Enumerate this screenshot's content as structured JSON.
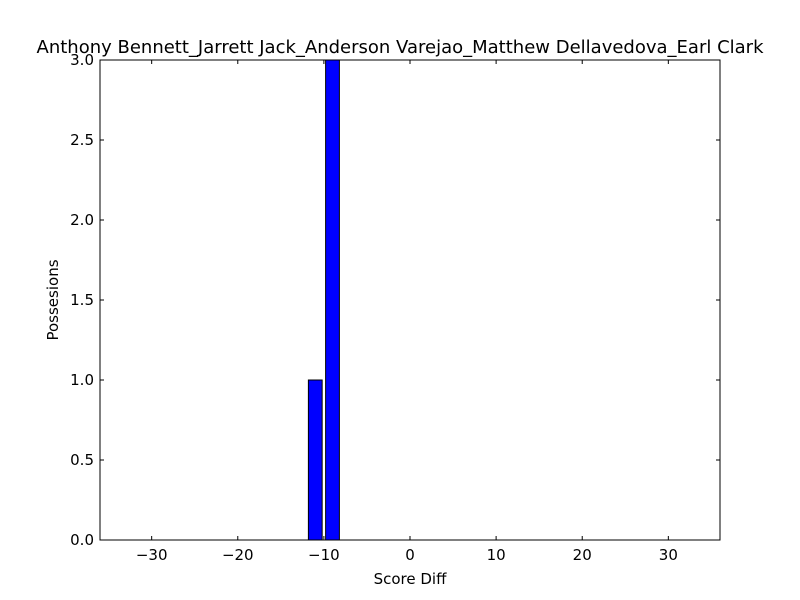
{
  "chart_data": {
    "type": "bar",
    "title": "Anthony Bennett_Jarrett Jack_Anderson Varejao_Matthew Dellavedova_Earl Clark",
    "xlabel": "Score Diff",
    "ylabel": "Possesions",
    "xlim": [
      -36,
      36
    ],
    "ylim": [
      0,
      3.0
    ],
    "bar_width": 1.6,
    "bar_color": "#0000ff",
    "x": [
      -11,
      -9
    ],
    "values": [
      1,
      3
    ],
    "xticks": [
      -30,
      -20,
      -10,
      0,
      10,
      20,
      30
    ],
    "xtick_labels": [
      "−30",
      "−20",
      "−10",
      "0",
      "10",
      "20",
      "30"
    ],
    "yticks": [
      0.0,
      0.5,
      1.0,
      1.5,
      2.0,
      2.5,
      3.0
    ],
    "ytick_labels": [
      "0.0",
      "0.5",
      "1.0",
      "1.5",
      "2.0",
      "2.5",
      "3.0"
    ],
    "grid": false,
    "legend": "none"
  }
}
